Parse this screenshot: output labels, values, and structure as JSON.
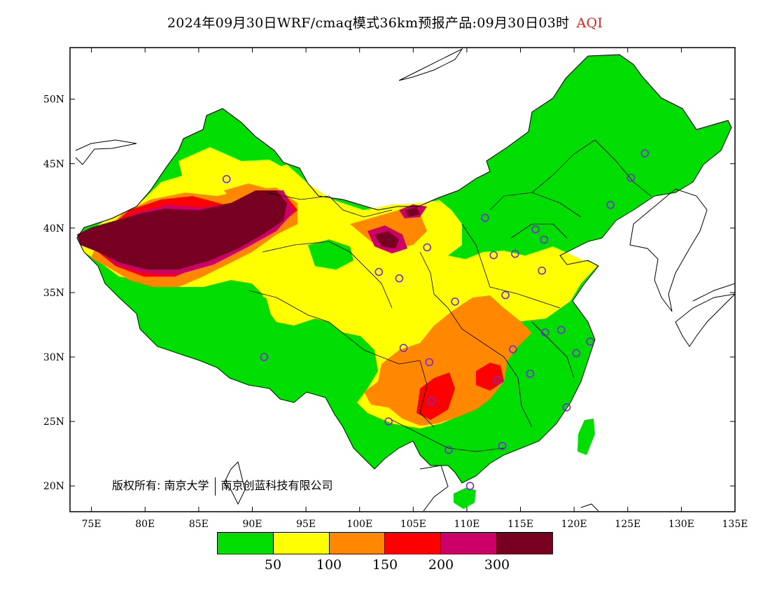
{
  "title": {
    "main": "2024年09月30日WRF/cmaq模式36km预报产品:09月30日03时",
    "variable": "AQI"
  },
  "axes": {
    "lon_labels": [
      "75E",
      "80E",
      "85E",
      "90E",
      "95E",
      "100E",
      "105E",
      "110E",
      "115E",
      "120E",
      "125E",
      "130E",
      "135E"
    ],
    "lat_labels": [
      "50N",
      "45N",
      "40N",
      "35N",
      "30N",
      "25N",
      "20N"
    ],
    "lon_range": [
      73,
      135
    ],
    "lat_range": [
      18,
      54
    ]
  },
  "copyright": {
    "prefix": "版权所有:",
    "org1": "南京大学",
    "org2": "南京创蓝科技有限公司"
  },
  "legend": {
    "labels": [
      "50",
      "100",
      "150",
      "200",
      "300"
    ],
    "colors": [
      "#00dd00",
      "#ffff00",
      "#ff8800",
      "#ff0000",
      "#cc0066",
      "#770022"
    ]
  },
  "stations": [
    {
      "lon": 87.6,
      "lat": 43.8
    },
    {
      "lon": 91.1,
      "lat": 30.0
    },
    {
      "lon": 101.8,
      "lat": 36.6
    },
    {
      "lon": 103.7,
      "lat": 36.1
    },
    {
      "lon": 106.3,
      "lat": 38.5
    },
    {
      "lon": 104.1,
      "lat": 30.7
    },
    {
      "lon": 106.5,
      "lat": 29.6
    },
    {
      "lon": 106.7,
      "lat": 26.6
    },
    {
      "lon": 102.7,
      "lat": 25.0
    },
    {
      "lon": 108.9,
      "lat": 34.3
    },
    {
      "lon": 111.7,
      "lat": 40.8
    },
    {
      "lon": 112.5,
      "lat": 37.9
    },
    {
      "lon": 114.5,
      "lat": 38.0
    },
    {
      "lon": 116.4,
      "lat": 39.9
    },
    {
      "lon": 117.2,
      "lat": 39.1
    },
    {
      "lon": 117.0,
      "lat": 36.7
    },
    {
      "lon": 113.6,
      "lat": 34.8
    },
    {
      "lon": 114.3,
      "lat": 30.6
    },
    {
      "lon": 112.9,
      "lat": 28.2
    },
    {
      "lon": 115.9,
      "lat": 28.7
    },
    {
      "lon": 117.3,
      "lat": 31.9
    },
    {
      "lon": 118.8,
      "lat": 32.1
    },
    {
      "lon": 120.2,
      "lat": 30.3
    },
    {
      "lon": 121.5,
      "lat": 31.2
    },
    {
      "lon": 119.3,
      "lat": 26.1
    },
    {
      "lon": 113.3,
      "lat": 23.1
    },
    {
      "lon": 108.3,
      "lat": 22.8
    },
    {
      "lon": 110.3,
      "lat": 20.0
    },
    {
      "lon": 123.4,
      "lat": 41.8
    },
    {
      "lon": 125.3,
      "lat": 43.9
    },
    {
      "lon": 126.6,
      "lat": 45.8
    }
  ]
}
